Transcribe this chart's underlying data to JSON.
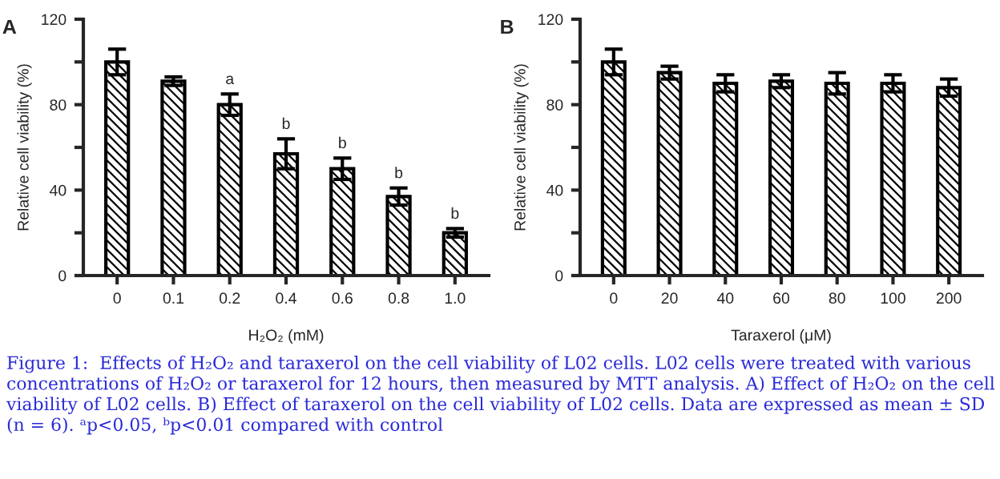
{
  "chart_data": [
    {
      "type": "bar",
      "title": "A",
      "xlabel": "H₂O₂ (mM)",
      "ylabel": "Relative cell viability (%)",
      "categories": [
        "0",
        "0.1",
        "0.2",
        "0.4",
        "0.6",
        "0.8",
        "1.0"
      ],
      "series": [
        {
          "color": "#000000",
          "values": [
            100,
            91,
            80,
            57,
            50,
            37,
            20
          ],
          "errors": [
            6,
            2,
            5,
            7,
            5,
            4,
            2
          ]
        }
      ],
      "ylim": [
        0,
        120
      ],
      "yticks": [
        0,
        {
          "value": 20,
          "label": null
        },
        40,
        {
          "value": 60,
          "label": null
        },
        80,
        {
          "value": 100,
          "label": null
        },
        120
      ],
      "grid": false,
      "legend": false,
      "annotations": [
        {
          "text": "a",
          "x": "0.2",
          "y": 80
        },
        {
          "text": "b",
          "x": "0.4",
          "y": 57
        },
        {
          "text": "b",
          "x": "0.6",
          "y": 50
        },
        {
          "text": "b",
          "x": "0.8",
          "y": 37
        },
        {
          "text": "b",
          "x": "1.0",
          "y": 20
        },
        "Figure 1:  Effects of H₂O₂ and taraxerol on the cell viability of L02 cells. L02 cells were treated with various concentrations of H₂O₂ or taraxerol for 12 hours, then measured by MTT analysis. A) Effect of H₂O₂ on the cell viability of L02 cells. B) Effect of taraxerol on the cell viability of L02 cells. Data are expressed as mean ± SD (n = 6). ᵃp<0.05, ᵇp<0.01 compared with control"
      ]
    },
    {
      "type": "bar",
      "title": "B",
      "xlabel": "Taraxerol (μM)",
      "ylabel": "Relative cell viability (%)",
      "categories": [
        "0",
        "20",
        "40",
        "60",
        "80",
        "100",
        "200"
      ],
      "series": [
        {
          "color": "#000000",
          "values": [
            100,
            95,
            90,
            91,
            90,
            90,
            88
          ],
          "errors": [
            6,
            3,
            4,
            3,
            5,
            4,
            4
          ]
        }
      ],
      "ylim": [
        0,
        120
      ],
      "yticks": [
        0,
        {
          "value": 20,
          "label": null
        },
        40,
        {
          "value": 60,
          "label": null
        },
        80,
        {
          "value": 100,
          "label": null
        },
        120
      ],
      "grid": false,
      "legend": false
    }
  ]
}
